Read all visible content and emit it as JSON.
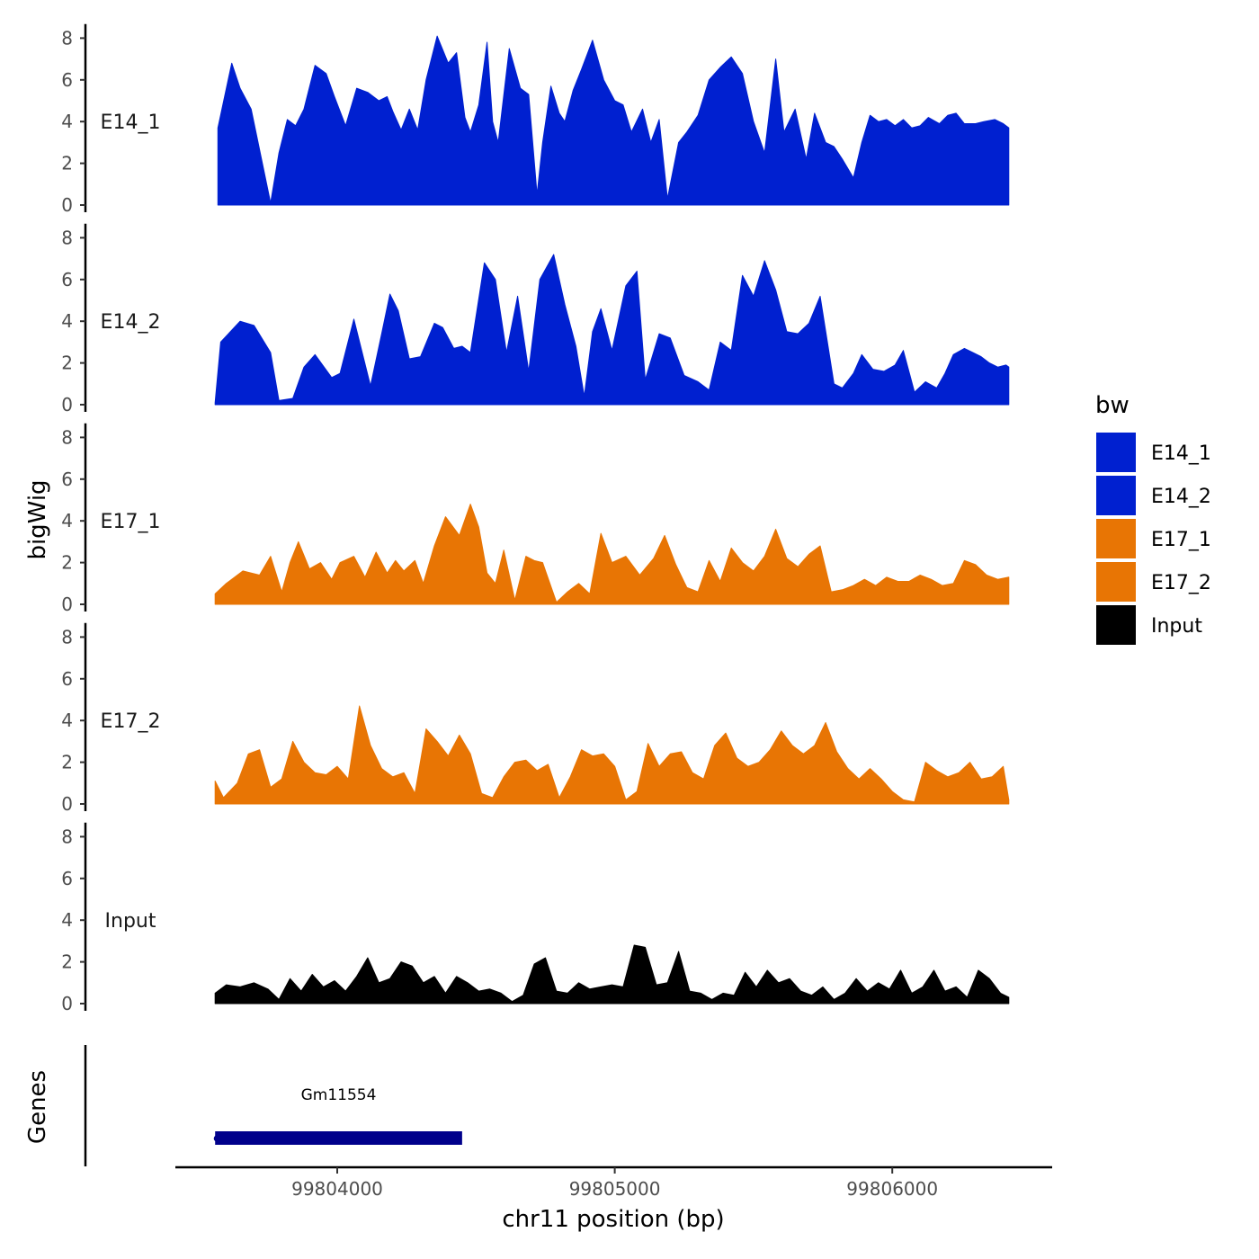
{
  "chart_data": {
    "type": "area",
    "chromosome": "chr11",
    "xlabel": "chr11 position (bp)",
    "ylabel": "bigWig",
    "genes_label": "Genes",
    "xlim": [
      99803450,
      99806580
    ],
    "ylim": [
      0,
      8.5
    ],
    "x_ticks": [
      99804000,
      99805000,
      99806000
    ],
    "x_tick_labels": [
      "99804000",
      "99805000",
      "99806000"
    ],
    "y_ticks": [
      0,
      2,
      4,
      6,
      8
    ],
    "y_tick_labels": [
      "0",
      "2",
      "4",
      "6",
      "8"
    ],
    "legend": {
      "title": "bw",
      "entries": [
        {
          "label": "E14_1",
          "color": "#0020D0"
        },
        {
          "label": "E14_2",
          "color": "#0020D0"
        },
        {
          "label": "E17_1",
          "color": "#E87504"
        },
        {
          "label": "E17_2",
          "color": "#E87504"
        },
        {
          "label": "Input",
          "color": "#000000"
        }
      ]
    },
    "series": [
      {
        "name": "E14_1",
        "label": "E14_1",
        "color": "#0020D0",
        "x": [
          99803570,
          99803620,
          99803650,
          99803690,
          99803760,
          99803790,
          99803820,
          99803850,
          99803880,
          99803920,
          99803960,
          99803990,
          99804030,
          99804070,
          99804110,
          99804150,
          99804180,
          99804200,
          99804230,
          99804260,
          99804290,
          99804320,
          99804360,
          99804400,
          99804430,
          99804460,
          99804480,
          99804510,
          99804540,
          99804560,
          99804580,
          99804620,
          99804660,
          99804690,
          99804720,
          99804740,
          99804770,
          99804800,
          99804820,
          99804850,
          99804880,
          99804920,
          99804960,
          99805000,
          99805030,
          99805060,
          99805100,
          99805130,
          99805160,
          99805190,
          99805230,
          99805260,
          99805300,
          99805340,
          99805380,
          99805420,
          99805460,
          99805500,
          99805540,
          99805580,
          99805610,
          99805650,
          99805690,
          99805720,
          99805760,
          99805790,
          99805820,
          99805860,
          99805890,
          99805920,
          99805950,
          99805980,
          99806010,
          99806040,
          99806070,
          99806100,
          99806130,
          99806170,
          99806200,
          99806230,
          99806260,
          99806300,
          99806330,
          99806370,
          99806400,
          99806420
        ],
        "y": [
          3.7,
          6.8,
          5.6,
          4.6,
          0.1,
          2.5,
          4.1,
          3.8,
          4.6,
          6.7,
          6.3,
          5.2,
          3.8,
          5.6,
          5.4,
          5.0,
          5.2,
          4.5,
          3.6,
          4.6,
          3.6,
          6.0,
          8.1,
          6.8,
          7.3,
          4.2,
          3.5,
          4.8,
          7.8,
          4.0,
          3.0,
          7.5,
          5.6,
          5.3,
          0.5,
          3.0,
          5.7,
          4.4,
          4.0,
          5.5,
          6.5,
          7.9,
          6.0,
          5.0,
          4.8,
          3.5,
          4.6,
          3.0,
          4.1,
          0.3,
          3.0,
          3.5,
          4.3,
          6.0,
          6.6,
          7.1,
          6.3,
          4.0,
          2.5,
          7.0,
          3.5,
          4.6,
          2.2,
          4.4,
          3.0,
          2.8,
          2.2,
          1.3,
          3.0,
          4.3,
          4.0,
          4.1,
          3.8,
          4.1,
          3.7,
          3.8,
          4.2,
          3.9,
          4.3,
          4.4,
          3.9,
          3.9,
          4.0,
          4.1,
          3.9,
          3.7
        ],
        "y_note": "approximate profile read from figure"
      },
      {
        "name": "E14_2",
        "label": "E14_2",
        "color": "#0020D0",
        "x": [
          99803560,
          99803580,
          99803650,
          99803700,
          99803760,
          99803790,
          99803840,
          99803880,
          99803920,
          99803980,
          99804010,
          99804060,
          99804120,
          99804160,
          99804190,
          99804220,
          99804260,
          99804300,
          99804350,
          99804380,
          99804420,
          99804450,
          99804480,
          99804530,
          99804570,
          99804610,
          99804650,
          99804690,
          99804730,
          99804780,
          99804820,
          99804860,
          99804890,
          99804920,
          99804950,
          99804990,
          99805040,
          99805080,
          99805110,
          99805160,
          99805200,
          99805250,
          99805300,
          99805340,
          99805380,
          99805420,
          99805460,
          99805500,
          99805540,
          99805580,
          99805620,
          99805660,
          99805700,
          99805740,
          99805790,
          99805820,
          99805860,
          99805890,
          99805930,
          99805970,
          99806010,
          99806040,
          99806080,
          99806120,
          99806160,
          99806190,
          99806220,
          99806260,
          99806290,
          99806320,
          99806350,
          99806380,
          99806410,
          99806420
        ],
        "y": [
          0.1,
          3.0,
          4.0,
          3.8,
          2.5,
          0.2,
          0.3,
          1.8,
          2.4,
          1.3,
          1.5,
          4.1,
          0.9,
          3.4,
          5.3,
          4.5,
          2.2,
          2.3,
          3.9,
          3.7,
          2.7,
          2.8,
          2.5,
          6.8,
          6.0,
          2.5,
          5.2,
          1.6,
          6.0,
          7.2,
          4.8,
          2.8,
          0.4,
          3.5,
          4.6,
          2.6,
          5.7,
          6.4,
          1.2,
          3.4,
          3.2,
          1.4,
          1.1,
          0.7,
          3.0,
          2.6,
          6.2,
          5.2,
          6.9,
          5.5,
          3.5,
          3.4,
          3.9,
          5.2,
          1.0,
          0.8,
          1.5,
          2.4,
          1.7,
          1.6,
          1.9,
          2.6,
          0.6,
          1.1,
          0.8,
          1.5,
          2.4,
          2.7,
          2.5,
          2.3,
          2.0,
          1.8,
          1.9,
          1.8
        ],
        "y_note": "approximate profile read from figure"
      },
      {
        "name": "E17_1",
        "label": "E17_1",
        "color": "#E87504",
        "x": [
          99803560,
          99803600,
          99803660,
          99803720,
          99803760,
          99803800,
          99803830,
          99803860,
          99803900,
          99803940,
          99803980,
          99804010,
          99804060,
          99804100,
          99804140,
          99804180,
          99804210,
          99804240,
          99804280,
          99804310,
          99804350,
          99804390,
          99804440,
          99804480,
          99804510,
          99804540,
          99804570,
          99804600,
          99804640,
          99804680,
          99804710,
          99804740,
          99804790,
          99804830,
          99804870,
          99804910,
          99804950,
          99804990,
          99805040,
          99805090,
          99805140,
          99805180,
          99805220,
          99805260,
          99805300,
          99805340,
          99805380,
          99805420,
          99805460,
          99805500,
          99805540,
          99805580,
          99805620,
          99805660,
          99805700,
          99805740,
          99805780,
          99805820,
          99805860,
          99805900,
          99805940,
          99805980,
          99806020,
          99806060,
          99806100,
          99806140,
          99806180,
          99806220,
          99806260,
          99806300,
          99806340,
          99806380,
          99806420
        ],
        "y": [
          0.5,
          1.0,
          1.6,
          1.4,
          2.3,
          0.6,
          2.0,
          3.0,
          1.7,
          2.0,
          1.2,
          2.0,
          2.3,
          1.3,
          2.5,
          1.5,
          2.1,
          1.6,
          2.1,
          1.0,
          2.8,
          4.2,
          3.3,
          4.8,
          3.7,
          1.5,
          1.0,
          2.6,
          0.2,
          2.3,
          2.1,
          2.0,
          0.1,
          0.6,
          1.0,
          0.5,
          3.4,
          2.0,
          2.3,
          1.4,
          2.2,
          3.3,
          1.9,
          0.8,
          0.6,
          2.1,
          1.1,
          2.7,
          2.0,
          1.6,
          2.3,
          3.6,
          2.2,
          1.8,
          2.4,
          2.8,
          0.6,
          0.7,
          0.9,
          1.2,
          0.9,
          1.3,
          1.1,
          1.1,
          1.4,
          1.2,
          0.9,
          1.0,
          2.1,
          1.9,
          1.4,
          1.2,
          1.3
        ],
        "y_note": "approximate profile read from figure"
      },
      {
        "name": "E17_2",
        "label": "E17_2",
        "color": "#E87504",
        "x": [
          99803560,
          99803590,
          99803640,
          99803680,
          99803720,
          99803760,
          99803800,
          99803840,
          99803880,
          99803920,
          99803960,
          99804000,
          99804040,
          99804080,
          99804120,
          99804160,
          99804200,
          99804240,
          99804280,
          99804320,
          99804360,
          99804400,
          99804440,
          99804480,
          99804520,
          99804560,
          99804600,
          99804640,
          99804680,
          99804720,
          99804760,
          99804800,
          99804840,
          99804880,
          99804920,
          99804960,
          99805000,
          99805040,
          99805080,
          99805120,
          99805160,
          99805200,
          99805240,
          99805280,
          99805320,
          99805360,
          99805400,
          99805440,
          99805480,
          99805520,
          99805560,
          99805600,
          99805640,
          99805680,
          99805720,
          99805760,
          99805800,
          99805840,
          99805880,
          99805920,
          99805960,
          99806000,
          99806040,
          99806080,
          99806120,
          99806160,
          99806200,
          99806240,
          99806280,
          99806320,
          99806360,
          99806400,
          99806420
        ],
        "y": [
          1.1,
          0.3,
          1.0,
          2.4,
          2.6,
          0.8,
          1.2,
          3.0,
          2.0,
          1.5,
          1.4,
          1.8,
          1.2,
          4.7,
          2.8,
          1.7,
          1.3,
          1.5,
          0.5,
          3.6,
          3.0,
          2.3,
          3.3,
          2.4,
          0.5,
          0.3,
          1.3,
          2.0,
          2.1,
          1.6,
          1.9,
          0.3,
          1.3,
          2.6,
          2.3,
          2.4,
          1.8,
          0.2,
          0.6,
          2.9,
          1.8,
          2.4,
          2.5,
          1.5,
          1.2,
          2.8,
          3.4,
          2.2,
          1.8,
          2.0,
          2.6,
          3.5,
          2.8,
          2.4,
          2.8,
          3.9,
          2.5,
          1.7,
          1.2,
          1.7,
          1.2,
          0.6,
          0.2,
          0.1,
          2.0,
          1.6,
          1.3,
          1.5,
          2.0,
          1.2,
          1.3,
          1.8,
          0.2
        ],
        "y_note": "approximate profile read from figure"
      },
      {
        "name": "Input",
        "label": "Input",
        "color": "#000000",
        "x": [
          99803560,
          99803600,
          99803650,
          99803700,
          99803750,
          99803790,
          99803830,
          99803870,
          99803910,
          99803950,
          99803990,
          99804030,
          99804070,
          99804110,
          99804150,
          99804190,
          99804230,
          99804270,
          99804310,
          99804350,
          99804390,
          99804430,
          99804470,
          99804510,
          99804550,
          99804590,
          99804630,
          99804670,
          99804710,
          99804750,
          99804790,
          99804830,
          99804870,
          99804910,
          99804950,
          99804990,
          99805030,
          99805070,
          99805110,
          99805150,
          99805190,
          99805230,
          99805270,
          99805310,
          99805350,
          99805390,
          99805430,
          99805470,
          99805510,
          99805550,
          99805590,
          99805630,
          99805670,
          99805710,
          99805750,
          99805790,
          99805830,
          99805870,
          99805910,
          99805950,
          99805990,
          99806030,
          99806070,
          99806110,
          99806150,
          99806190,
          99806230,
          99806270,
          99806310,
          99806350,
          99806390,
          99806420
        ],
        "y": [
          0.5,
          0.9,
          0.8,
          1.0,
          0.7,
          0.2,
          1.2,
          0.6,
          1.4,
          0.8,
          1.1,
          0.6,
          1.3,
          2.2,
          1.0,
          1.2,
          2.0,
          1.8,
          1.0,
          1.3,
          0.5,
          1.3,
          1.0,
          0.6,
          0.7,
          0.5,
          0.1,
          0.4,
          1.9,
          2.2,
          0.6,
          0.5,
          1.0,
          0.7,
          0.8,
          0.9,
          0.8,
          2.8,
          2.7,
          0.9,
          1.0,
          2.5,
          0.6,
          0.5,
          0.2,
          0.5,
          0.4,
          1.5,
          0.8,
          1.6,
          1.0,
          1.2,
          0.6,
          0.4,
          0.8,
          0.2,
          0.5,
          1.2,
          0.6,
          1.0,
          0.7,
          1.6,
          0.5,
          0.8,
          1.6,
          0.6,
          0.8,
          0.3,
          1.6,
          1.2,
          0.5,
          0.3
        ],
        "y_note": "approximate profile read from figure"
      }
    ],
    "genes": [
      {
        "name": "Gm11554",
        "start": 99803560,
        "end": 99804450,
        "strand": "-",
        "color": "#00008B"
      }
    ]
  }
}
